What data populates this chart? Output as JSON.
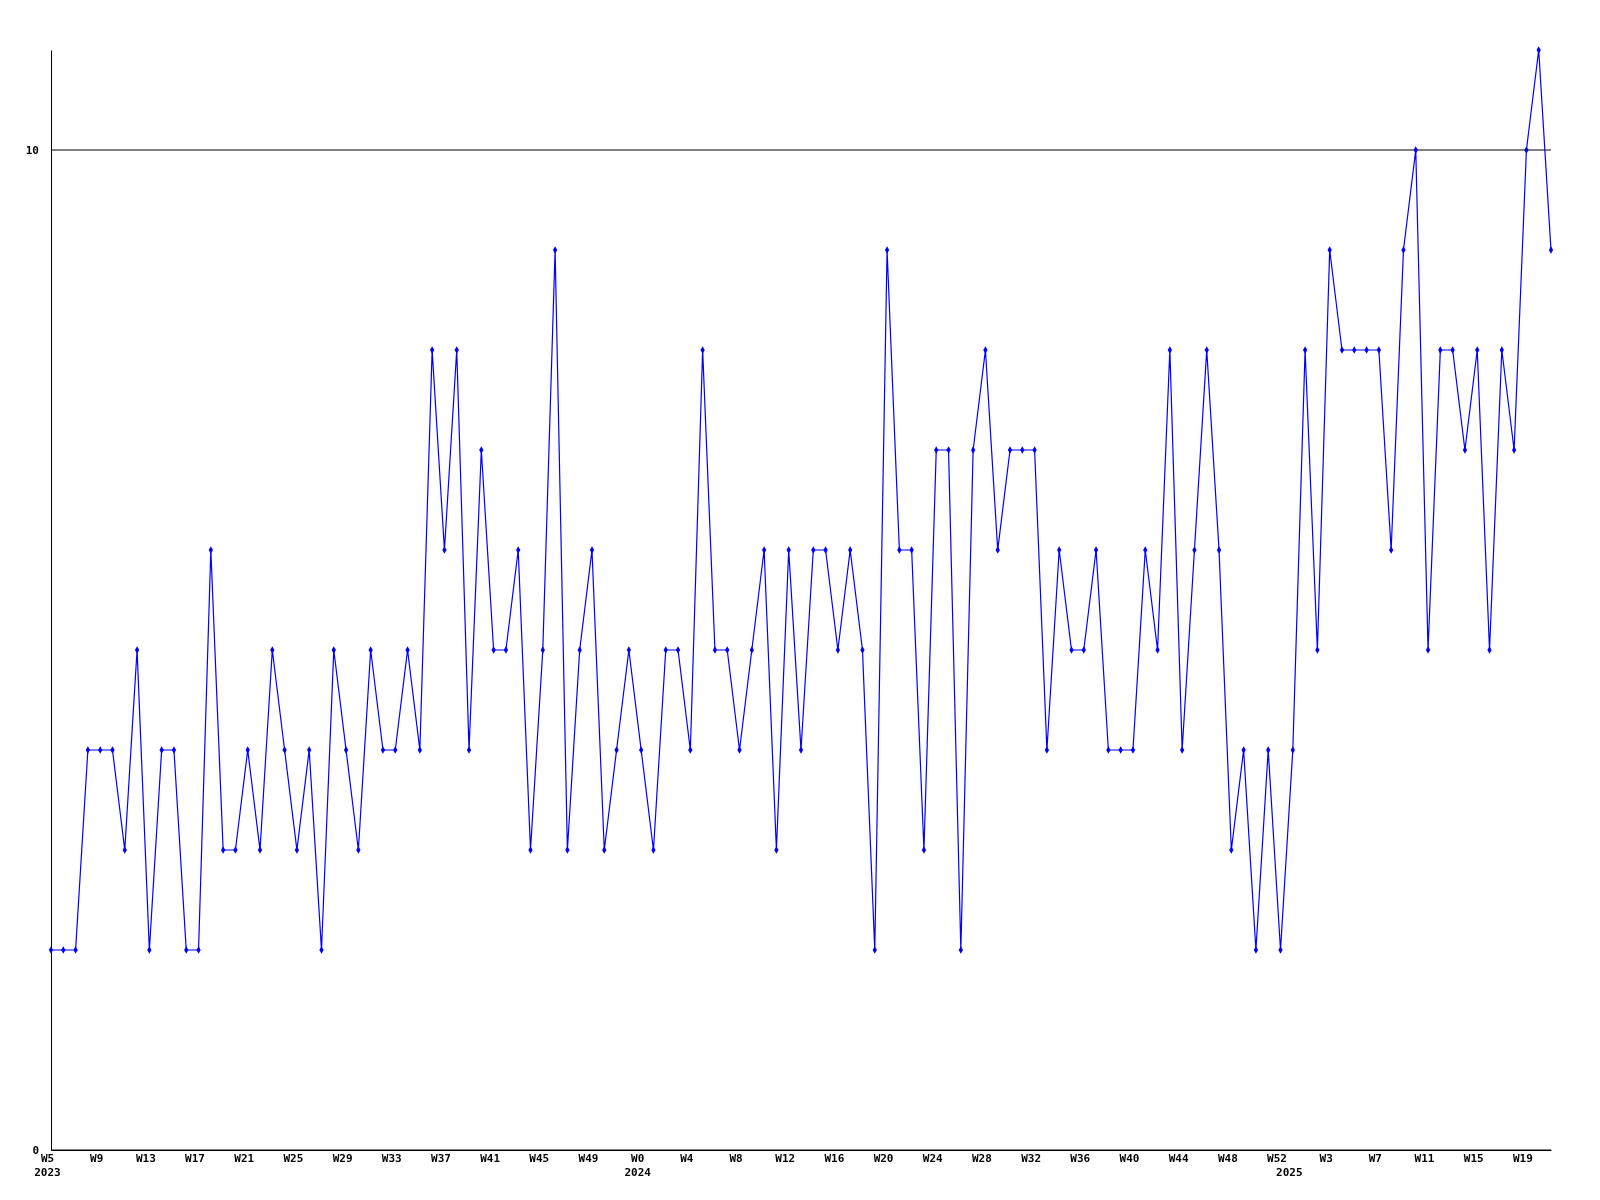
{
  "chart_data": {
    "type": "line",
    "categories": [
      "W5\n2023",
      null,
      null,
      null,
      "W9",
      null,
      null,
      null,
      "W13",
      null,
      null,
      null,
      "W17",
      null,
      null,
      null,
      "W21",
      null,
      null,
      null,
      "W25",
      null,
      null,
      null,
      "W29",
      null,
      null,
      null,
      "W33",
      null,
      null,
      null,
      "W37",
      null,
      null,
      null,
      "W41",
      null,
      null,
      null,
      "W45",
      null,
      null,
      null,
      "W49",
      null,
      null,
      null,
      "W0\n2024",
      null,
      null,
      null,
      "W4",
      null,
      null,
      null,
      "W8",
      null,
      null,
      null,
      "W12",
      null,
      null,
      null,
      "W16",
      null,
      null,
      null,
      "W20",
      null,
      null,
      null,
      "W24",
      null,
      null,
      null,
      "W28",
      null,
      null,
      null,
      "W32",
      null,
      null,
      null,
      "W36",
      null,
      null,
      null,
      "W40",
      null,
      null,
      null,
      "W44",
      null,
      null,
      null,
      "W48",
      null,
      null,
      null,
      "W52",
      "\n2025",
      null,
      null,
      "W3",
      null,
      null,
      null,
      "W7",
      null,
      null,
      null,
      "W11",
      null,
      null,
      null,
      "W15",
      null,
      null,
      null,
      "W19",
      null,
      null
    ],
    "series": [
      {
        "color": "#0000ff",
        "values": [
          2,
          2,
          2,
          4,
          4,
          4,
          3,
          5,
          2,
          4,
          4,
          2,
          2,
          6,
          3,
          3,
          4,
          3,
          5,
          4,
          3,
          4,
          2,
          5,
          4,
          3,
          5,
          4,
          4,
          5,
          4,
          8,
          6,
          8,
          4,
          7,
          5,
          5,
          6,
          3,
          5,
          9,
          3,
          5,
          6,
          3,
          4,
          5,
          4,
          3,
          5,
          5,
          4,
          8,
          5,
          5,
          4,
          5,
          6,
          3,
          6,
          4,
          6,
          6,
          5,
          6,
          5,
          2,
          9,
          6,
          6,
          3,
          7,
          7,
          2,
          7,
          8,
          6,
          7,
          7,
          7,
          4,
          6,
          5,
          5,
          6,
          4,
          4,
          4,
          6,
          5,
          8,
          4,
          6,
          8,
          6,
          3,
          4,
          2,
          4,
          2,
          4,
          8,
          5,
          9,
          8,
          8,
          8,
          8,
          6,
          9,
          10,
          5,
          8,
          8,
          7,
          8,
          5,
          8,
          7,
          10,
          11,
          9
        ]
      }
    ],
    "ylim": [
      0,
      11
    ],
    "yticks": [
      0,
      10
    ],
    "grid": "y",
    "marker": "diamond",
    "line_style": "solid"
  }
}
